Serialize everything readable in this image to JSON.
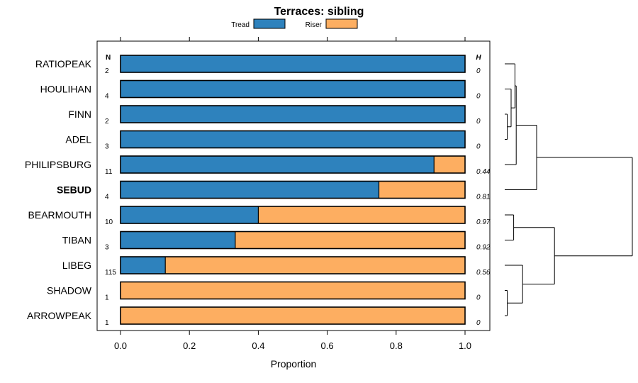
{
  "chart_data": {
    "type": "bar",
    "stacked": true,
    "orientation": "horizontal",
    "title": "Terraces: sibling",
    "xlabel": "Proportion",
    "xlim": [
      0,
      1
    ],
    "x_ticks": [
      "0.0",
      "0.2",
      "0.4",
      "0.6",
      "0.8",
      "1.0"
    ],
    "x_tick_values": [
      0,
      0.2,
      0.4,
      0.6,
      0.8,
      1.0
    ],
    "n_header": "N",
    "h_header": "H",
    "legend_position": "top",
    "colors": {
      "tread": "#2e82bd",
      "riser": "#fdae61"
    },
    "series": [
      {
        "name": "Tread",
        "color": "#2e82bd"
      },
      {
        "name": "Riser",
        "color": "#fdae61"
      }
    ],
    "rows": [
      {
        "label": "RATIOPEAK",
        "n": "2",
        "h": "0",
        "tread": 1.0,
        "bold": false
      },
      {
        "label": "HOULIHAN",
        "n": "4",
        "h": "0",
        "tread": 1.0,
        "bold": false
      },
      {
        "label": "FINN",
        "n": "2",
        "h": "0",
        "tread": 1.0,
        "bold": false
      },
      {
        "label": "ADEL",
        "n": "3",
        "h": "0",
        "tread": 1.0,
        "bold": false
      },
      {
        "label": "PHILIPSBURG",
        "n": "11",
        "h": "0.44",
        "tread": 0.91,
        "bold": false
      },
      {
        "label": "SEBUD",
        "n": "4",
        "h": "0.81",
        "tread": 0.75,
        "bold": true
      },
      {
        "label": "BEARMOUTH",
        "n": "10",
        "h": "0.97",
        "tread": 0.4,
        "bold": false
      },
      {
        "label": "TIBAN",
        "n": "3",
        "h": "0.92",
        "tread": 0.333,
        "bold": false
      },
      {
        "label": "LIBEG",
        "n": "115",
        "h": "0.56",
        "tread": 0.13,
        "bold": false
      },
      {
        "label": "SHADOW",
        "n": "1",
        "h": "0",
        "tread": 0.0,
        "bold": false
      },
      {
        "label": "ARROWPEAK",
        "n": "1",
        "h": "0",
        "tread": 0.0,
        "bold": false
      }
    ],
    "dendrogram": {
      "leaves": [
        "RATIOPEAK",
        "HOULIHAN",
        "FINN",
        "ADEL",
        "PHILIPSBURG",
        "SEBUD",
        "BEARMOUTH",
        "TIBAN",
        "LIBEG",
        "SHADOW",
        "ARROWPEAK"
      ],
      "merges": [
        {
          "a": "FINN",
          "b": "ADEL",
          "height": 0.02
        },
        {
          "a": "HOULIHAN",
          "b": "m0",
          "height": 0.05
        },
        {
          "a": "RATIOPEAK",
          "b": "m1",
          "height": 0.08
        },
        {
          "a": "m2",
          "b": "PHILIPSBURG",
          "height": 0.09
        },
        {
          "a": "m3",
          "b": "SEBUD",
          "height": 0.25
        },
        {
          "a": "BEARMOUTH",
          "b": "TIBAN",
          "height": 0.07
        },
        {
          "a": "SHADOW",
          "b": "ARROWPEAK",
          "height": 0.02
        },
        {
          "a": "LIBEG",
          "b": "m6",
          "height": 0.14
        },
        {
          "a": "m5",
          "b": "m7",
          "height": 0.39
        },
        {
          "a": "m4",
          "b": "m8",
          "height": 1.0
        }
      ]
    }
  }
}
